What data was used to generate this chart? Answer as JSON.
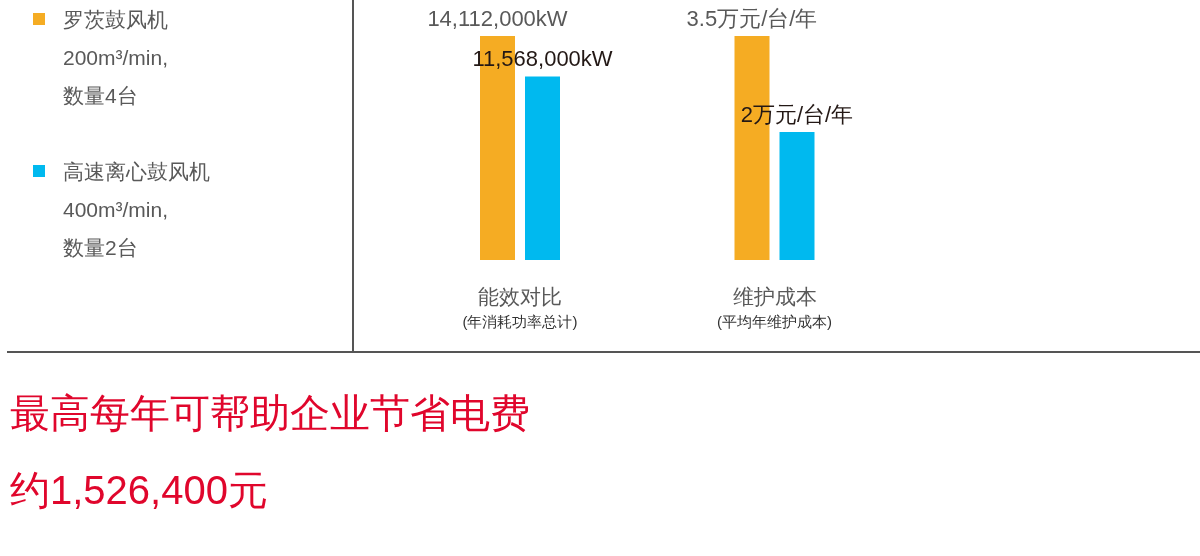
{
  "chart_data": [
    {
      "type": "bar",
      "categories": [
        "能效对比"
      ],
      "xlabel": "(年消耗功率总计)",
      "series": [
        {
          "name": "罗茨鼓风机\n200m³/min,\n数量4台",
          "color": "#f5ac23",
          "values": [
            14112000
          ],
          "value_labels": [
            "14,112,000kW"
          ]
        },
        {
          "name": "高速离心鼓风机\n400m³/min,\n数量2台",
          "color": "#00b9ef",
          "values": [
            11568000
          ],
          "value_labels": [
            "11,568,000kW"
          ]
        }
      ],
      "legend": "left",
      "annotations": [
        "最高每年可帮助企业节省电费",
        "约1,526,400元"
      ]
    },
    {
      "type": "bar",
      "categories": [
        "维护成本"
      ],
      "xlabel": "(平均年维护成本)",
      "series": [
        {
          "color": "#f5ac23",
          "values": [
            3.5
          ],
          "value_labels": [
            "3.5万元/台/年"
          ]
        },
        {
          "color": "#00b9ef",
          "values": [
            2
          ],
          "value_labels": [
            "2万元/台/年"
          ]
        }
      ]
    }
  ]
}
